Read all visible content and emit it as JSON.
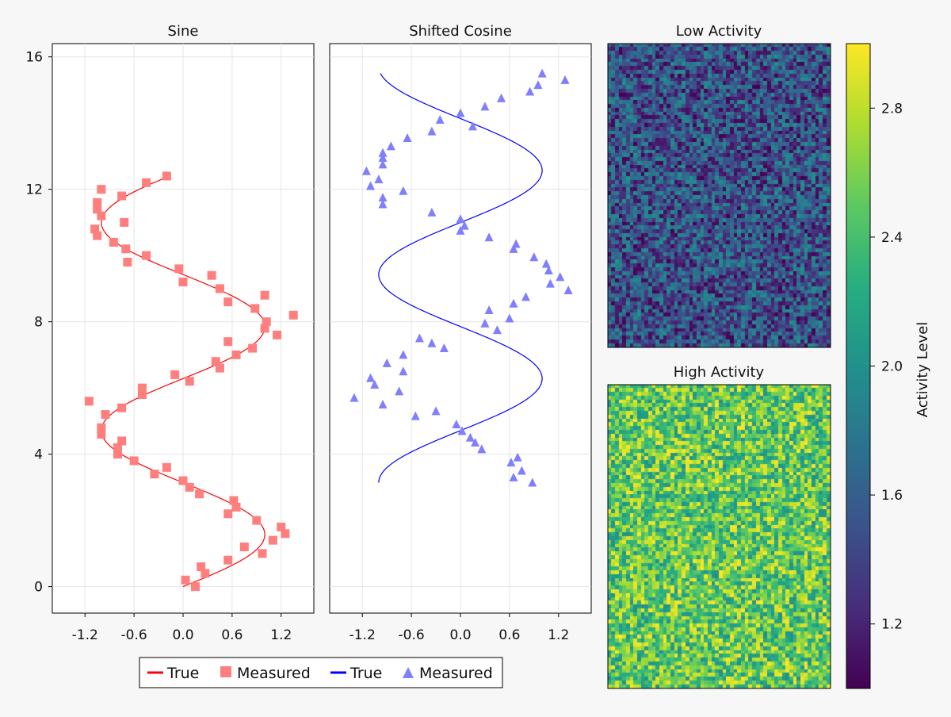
{
  "colors": {
    "sine": "#ff0000",
    "sine_marker": "#ff7f7f",
    "cosine": "#0000ff",
    "cosine_marker": "#7f7fff",
    "background": "#f7f7f7",
    "grid": "#e5e5e5"
  },
  "legend": {
    "items": [
      {
        "label": "True",
        "kind": "line",
        "color": "#ff0000"
      },
      {
        "label": "Measured",
        "kind": "square",
        "color": "#ff7f7f"
      },
      {
        "label": "True",
        "kind": "line",
        "color": "#0000ff"
      },
      {
        "label": "Measured",
        "kind": "triangle",
        "color": "#7f7fff"
      }
    ]
  },
  "chart_data": [
    {
      "type": "scatter",
      "title": "Sine",
      "orientation": "x = value, y = t",
      "xlim": [
        -1.6,
        1.6
      ],
      "ylim": [
        -0.8,
        16.4
      ],
      "xticks": [
        -1.2,
        -0.6,
        0.0,
        0.6,
        1.2
      ],
      "xticklabels": [
        "-1.2",
        "-0.6",
        "0.0",
        "0.6",
        "1.2"
      ],
      "yticks": [
        0,
        4,
        8,
        12,
        16
      ],
      "grid": true,
      "series": [
        {
          "name": "True",
          "kind": "line",
          "function": "sin(t)",
          "t_range": [
            0,
            12.4
          ]
        },
        {
          "name": "Measured",
          "kind": "scatter",
          "marker": "square",
          "points": [
            [
              0.03,
              0.2
            ],
            [
              0.15,
              0.0
            ],
            [
              0.22,
              0.6
            ],
            [
              0.27,
              0.4
            ],
            [
              0.55,
              0.8
            ],
            [
              0.75,
              1.2
            ],
            [
              0.97,
              1.0
            ],
            [
              1.1,
              1.4
            ],
            [
              1.2,
              1.8
            ],
            [
              1.25,
              1.6
            ],
            [
              0.9,
              2.0
            ],
            [
              0.55,
              2.2
            ],
            [
              0.65,
              2.4
            ],
            [
              0.62,
              2.6
            ],
            [
              0.2,
              2.8
            ],
            [
              0.08,
              3.0
            ],
            [
              0.0,
              3.2
            ],
            [
              -0.2,
              3.6
            ],
            [
              -0.35,
              3.4
            ],
            [
              -0.6,
              3.8
            ],
            [
              -0.8,
              4.0
            ],
            [
              -0.8,
              4.2
            ],
            [
              -0.75,
              4.4
            ],
            [
              -1.0,
              4.6
            ],
            [
              -1.0,
              4.8
            ],
            [
              -0.95,
              5.2
            ],
            [
              -0.75,
              5.4
            ],
            [
              -1.15,
              5.6
            ],
            [
              -0.5,
              5.8
            ],
            [
              -0.5,
              6.0
            ],
            [
              0.08,
              6.2
            ],
            [
              -0.1,
              6.4
            ],
            [
              0.45,
              6.6
            ],
            [
              0.4,
              6.8
            ],
            [
              0.65,
              7.0
            ],
            [
              0.85,
              7.2
            ],
            [
              0.55,
              7.4
            ],
            [
              1.15,
              7.6
            ],
            [
              1.0,
              7.8
            ],
            [
              1.02,
              8.0
            ],
            [
              1.35,
              8.2
            ],
            [
              0.88,
              8.4
            ],
            [
              0.55,
              8.6
            ],
            [
              1.0,
              8.8
            ],
            [
              0.45,
              9.0
            ],
            [
              0.0,
              9.2
            ],
            [
              0.35,
              9.4
            ],
            [
              -0.05,
              9.6
            ],
            [
              -0.68,
              9.8
            ],
            [
              -0.45,
              10.0
            ],
            [
              -0.7,
              10.2
            ],
            [
              -0.85,
              10.4
            ],
            [
              -1.05,
              10.6
            ],
            [
              -1.08,
              10.8
            ],
            [
              -0.72,
              11.0
            ],
            [
              -1.0,
              11.2
            ],
            [
              -1.05,
              11.4
            ],
            [
              -1.05,
              11.6
            ],
            [
              -0.75,
              11.8
            ],
            [
              -1.0,
              12.0
            ],
            [
              -0.45,
              12.2
            ],
            [
              -0.2,
              12.4
            ]
          ]
        }
      ]
    },
    {
      "type": "scatter",
      "title": "Shifted Cosine",
      "orientation": "x = value, y = t",
      "xlim": [
        -1.6,
        1.6
      ],
      "ylim": [
        -0.8,
        16.4
      ],
      "xticks": [
        -1.2,
        -0.6,
        0.0,
        0.6,
        1.2
      ],
      "xticklabels": [
        "-1.2",
        "-0.6",
        "0.0",
        "0.6",
        "1.2"
      ],
      "grid": true,
      "series": [
        {
          "name": "True",
          "kind": "line",
          "function": "cos(t)",
          "t_range": [
            3.14,
            15.5
          ]
        },
        {
          "name": "Measured",
          "kind": "scatter",
          "marker": "triangle",
          "points": [
            [
              0.88,
              3.14
            ],
            [
              0.65,
              3.3
            ],
            [
              0.75,
              3.5
            ],
            [
              0.62,
              3.75
            ],
            [
              0.7,
              3.9
            ],
            [
              0.26,
              4.15
            ],
            [
              0.18,
              4.35
            ],
            [
              0.12,
              4.5
            ],
            [
              0.02,
              4.7
            ],
            [
              -0.05,
              4.9
            ],
            [
              -0.3,
              5.3
            ],
            [
              -0.55,
              5.15
            ],
            [
              -0.95,
              5.5
            ],
            [
              -1.3,
              5.7
            ],
            [
              -0.75,
              5.9
            ],
            [
              -1.05,
              6.1
            ],
            [
              -1.1,
              6.3
            ],
            [
              -0.7,
              6.5
            ],
            [
              -0.9,
              6.75
            ],
            [
              -0.7,
              7.0
            ],
            [
              -0.2,
              7.2
            ],
            [
              -0.35,
              7.35
            ],
            [
              -0.5,
              7.5
            ],
            [
              0.45,
              7.75
            ],
            [
              0.3,
              7.95
            ],
            [
              0.6,
              8.1
            ],
            [
              0.35,
              8.35
            ],
            [
              0.65,
              8.55
            ],
            [
              0.8,
              8.75
            ],
            [
              1.32,
              8.95
            ],
            [
              1.1,
              9.15
            ],
            [
              1.22,
              9.35
            ],
            [
              1.08,
              9.55
            ],
            [
              1.05,
              9.75
            ],
            [
              0.9,
              9.95
            ],
            [
              0.65,
              10.2
            ],
            [
              0.68,
              10.35
            ],
            [
              0.35,
              10.55
            ],
            [
              0.0,
              10.75
            ],
            [
              0.05,
              10.9
            ],
            [
              0.0,
              11.1
            ],
            [
              -0.35,
              11.3
            ],
            [
              -0.95,
              11.55
            ],
            [
              -0.95,
              11.75
            ],
            [
              -0.7,
              11.95
            ],
            [
              -1.1,
              12.1
            ],
            [
              -1.0,
              12.3
            ],
            [
              -1.15,
              12.55
            ],
            [
              -0.95,
              12.75
            ],
            [
              -0.95,
              12.95
            ],
            [
              -0.95,
              13.1
            ],
            [
              -0.85,
              13.3
            ],
            [
              -0.65,
              13.55
            ],
            [
              -0.35,
              13.75
            ],
            [
              -0.25,
              14.1
            ],
            [
              0.15,
              13.9
            ],
            [
              0.0,
              14.3
            ],
            [
              0.3,
              14.5
            ],
            [
              0.5,
              14.75
            ],
            [
              0.85,
              14.95
            ],
            [
              0.95,
              15.15
            ],
            [
              1.28,
              15.3
            ],
            [
              1.0,
              15.5
            ]
          ]
        }
      ]
    },
    {
      "type": "heatmap",
      "title": "Low Activity",
      "value_range": [
        1.0,
        2.0
      ],
      "grid_size": [
        60,
        80
      ],
      "pattern": "uniform random noise"
    },
    {
      "type": "heatmap",
      "title": "High Activity",
      "value_range": [
        2.0,
        3.0
      ],
      "grid_size": [
        60,
        80
      ],
      "pattern": "uniform random noise"
    },
    {
      "type": "colorbar",
      "label": "Activity Level",
      "colormap": "viridis",
      "limits": [
        1.0,
        3.0
      ],
      "ticks": [
        1.2,
        1.6,
        2.0,
        2.4,
        2.8
      ],
      "ticklabels": [
        "1.2",
        "1.6",
        "2.0",
        "2.4",
        "2.8"
      ]
    }
  ]
}
